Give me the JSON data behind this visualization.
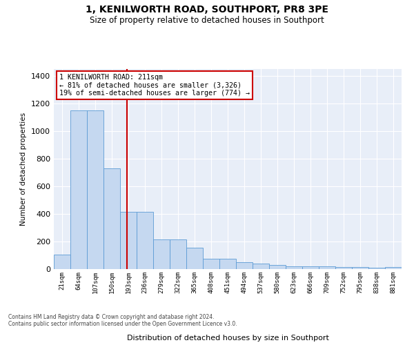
{
  "title": "1, KENILWORTH ROAD, SOUTHPORT, PR8 3PE",
  "subtitle": "Size of property relative to detached houses in Southport",
  "xlabel": "Distribution of detached houses by size in Southport",
  "ylabel": "Number of detached properties",
  "footnote1": "Contains HM Land Registry data © Crown copyright and database right 2024.",
  "footnote2": "Contains public sector information licensed under the Open Government Licence v3.0.",
  "annotation_line1": "1 KENILWORTH ROAD: 211sqm",
  "annotation_line2": "← 81% of detached houses are smaller (3,326)",
  "annotation_line3": "19% of semi-detached houses are larger (774) →",
  "property_size": 211,
  "bar_edges": [
    21,
    64,
    107,
    150,
    193,
    236,
    279,
    322,
    365,
    408,
    451,
    494,
    537,
    580,
    623,
    666,
    709,
    752,
    795,
    838,
    881
  ],
  "bar_values": [
    105,
    1150,
    1150,
    730,
    415,
    415,
    215,
    215,
    155,
    75,
    75,
    50,
    40,
    32,
    22,
    18,
    18,
    14,
    14,
    10,
    13
  ],
  "bar_color": "#c5d8f0",
  "bar_edge_color": "#5b9bd5",
  "marker_color": "#cc0000",
  "annotation_box_color": "#cc0000",
  "plot_background": "#e8eef8",
  "ylim": [
    0,
    1450
  ],
  "yticks": [
    0,
    200,
    400,
    600,
    800,
    1000,
    1200,
    1400
  ]
}
